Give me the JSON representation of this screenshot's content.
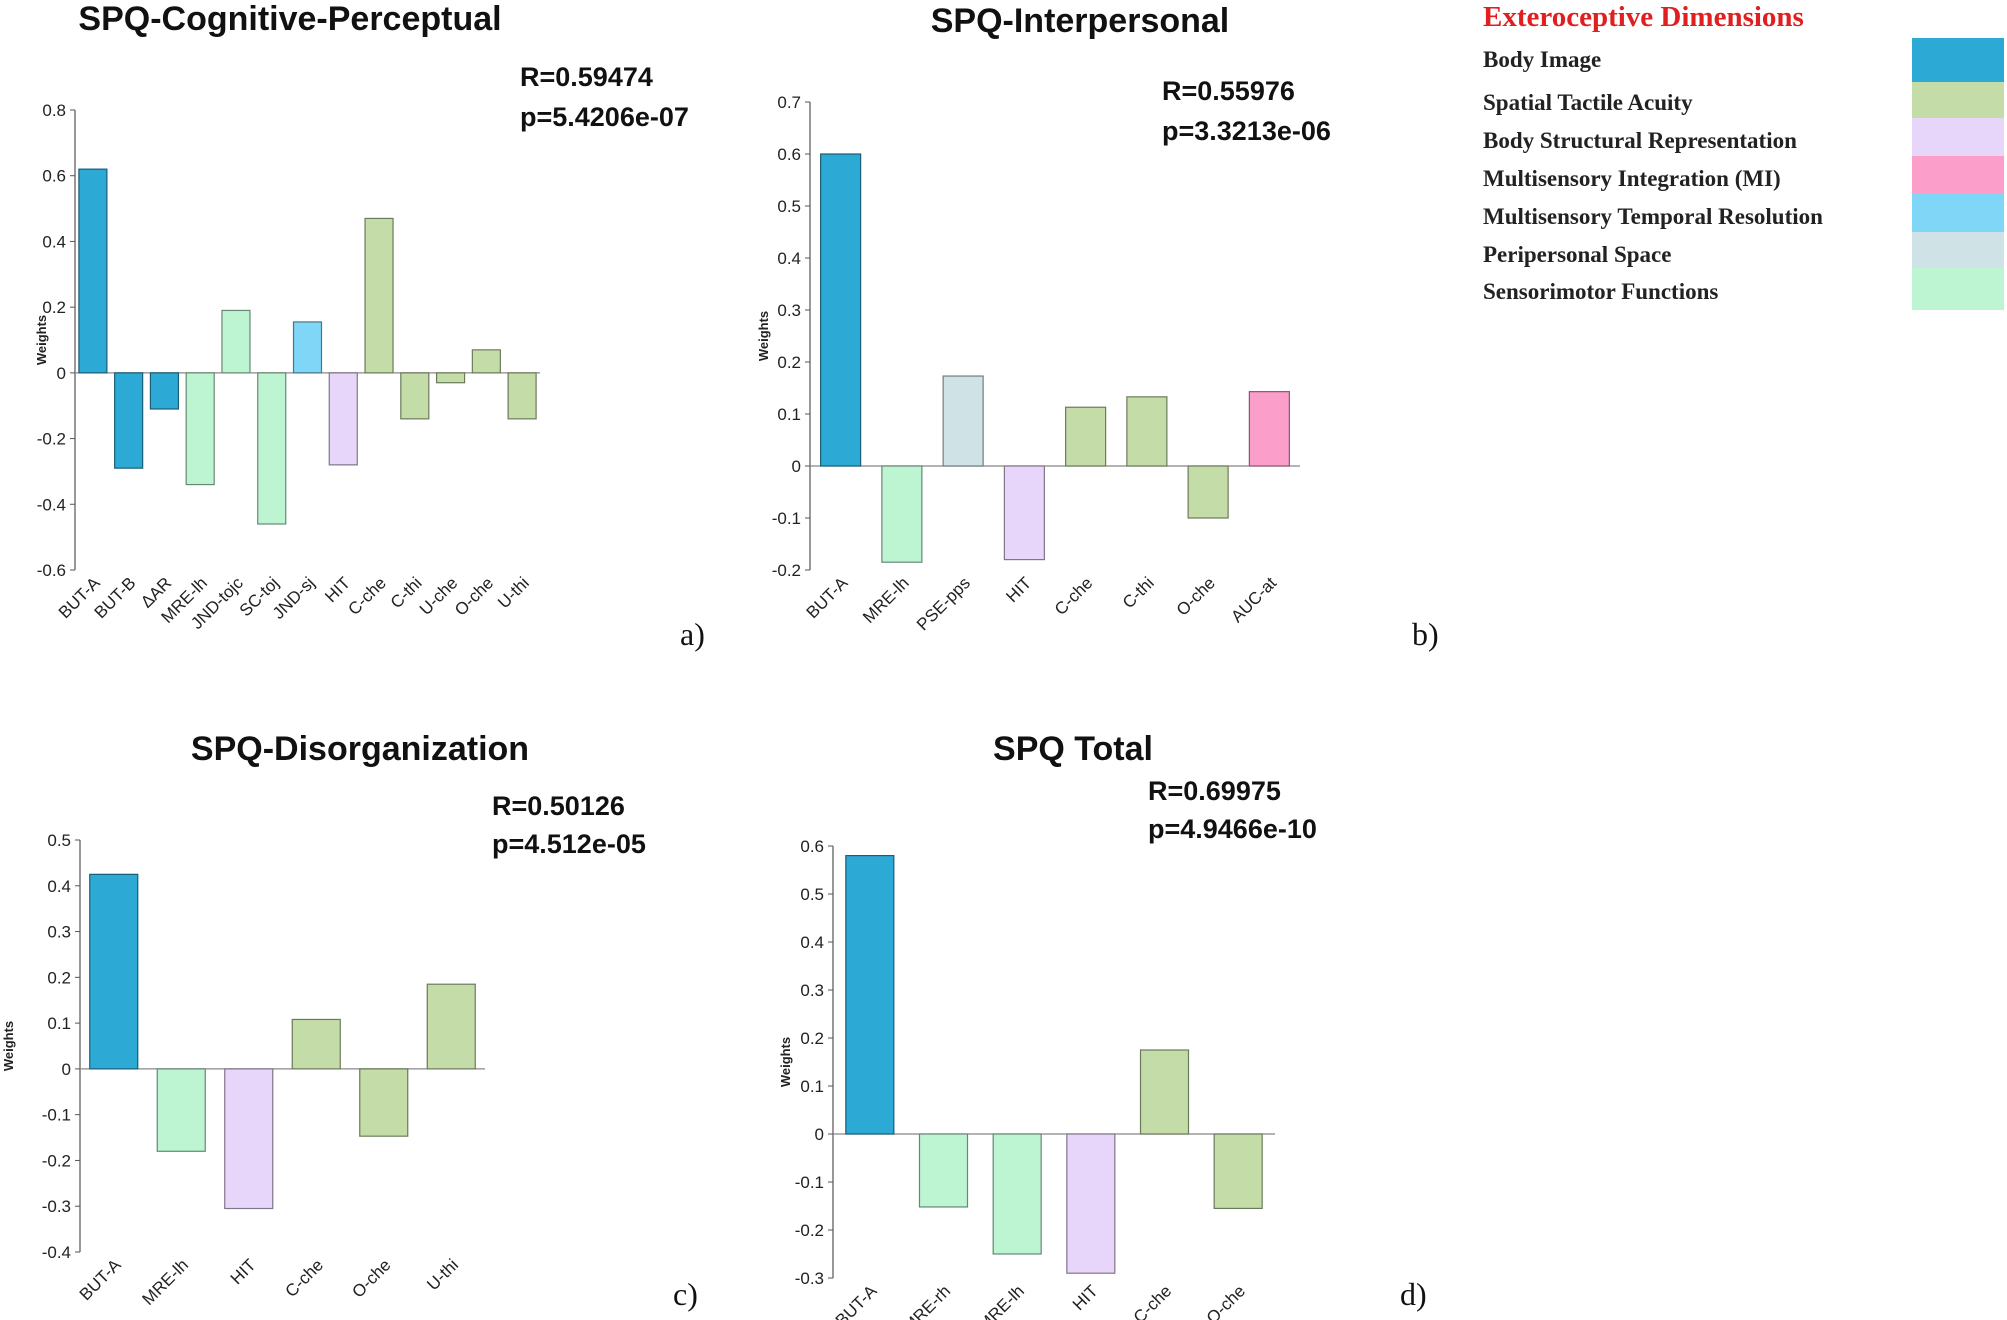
{
  "legend": {
    "title": "Exteroceptive Dimensions",
    "items": [
      {
        "label": "Body Image",
        "color": "#2da9d6"
      },
      {
        "label": "Spatial Tactile Acuity",
        "color": "#c4dda8"
      },
      {
        "label": "Body Structural Representation",
        "color": "#e8d6fa"
      },
      {
        "label": "Multisensory  Integration  (MI)",
        "color": "#fb9ec9"
      },
      {
        "label": "Multisensory  Temporal Resolution",
        "color": "#80d6f7"
      },
      {
        "label": "Peripersonal Space",
        "color": "#cfe2e6"
      },
      {
        "label": "Sensorimotor  Functions",
        "color": "#bdf5d2"
      }
    ]
  },
  "chart_data": [
    {
      "type": "bar",
      "panel": "a)",
      "title": "SPQ-Cognitive-Perceptual",
      "r_text": "R=0.59474",
      "p_text": "p=5.4206e-07",
      "ylabel": "Weights",
      "ylim": [
        -0.6,
        0.8
      ],
      "yticks": [
        -0.6,
        -0.4,
        -0.2,
        0,
        0.2,
        0.4,
        0.6,
        0.8
      ],
      "tick_labels": [
        "-0.6",
        "-0.4",
        "-0.2",
        "0",
        "0.2",
        "0.4",
        "0.6",
        "0.8"
      ],
      "categories": [
        "BUT-A",
        "BUT-B",
        "ΔAR",
        "MRE-lh",
        "JND-tojc",
        "SC-toj",
        "JND-sj",
        "HIT",
        "C-che",
        "C-thi",
        "U-che",
        "O-che",
        "U-thi"
      ],
      "values": [
        0.62,
        -0.29,
        -0.11,
        -0.34,
        0.19,
        -0.46,
        0.155,
        -0.28,
        0.47,
        -0.14,
        -0.03,
        0.07,
        -0.14
      ],
      "colors": [
        "#2da9d6",
        "#2da9d6",
        "#2da9d6",
        "#bdf5d2",
        "#bdf5d2",
        "#bdf5d2",
        "#80d6f7",
        "#e8d6fa",
        "#c4dda8",
        "#c4dda8",
        "#c4dda8",
        "#c4dda8",
        "#c4dda8"
      ]
    },
    {
      "type": "bar",
      "panel": "b)",
      "title": "SPQ-Interpersonal",
      "r_text": "R=0.55976",
      "p_text": "p=3.3213e-06",
      "ylabel": "Weights",
      "ylim": [
        -0.2,
        0.7
      ],
      "yticks": [
        -0.2,
        -0.1,
        0,
        0.1,
        0.2,
        0.3,
        0.4,
        0.5,
        0.6,
        0.7
      ],
      "tick_labels": [
        "-0.2",
        "-0.1",
        "0",
        "0.1",
        "0.2",
        "0.3",
        "0.4",
        "0.5",
        "0.6",
        "0.7"
      ],
      "categories": [
        "BUT-A",
        "MRE-lh",
        "PSE-pps",
        "HIT",
        "C-che",
        "C-thi",
        "O-che",
        "AUC-at"
      ],
      "values": [
        0.6,
        -0.185,
        0.173,
        -0.18,
        0.113,
        0.133,
        -0.1,
        0.143
      ],
      "colors": [
        "#2da9d6",
        "#bdf5d2",
        "#cfe2e6",
        "#e8d6fa",
        "#c4dda8",
        "#c4dda8",
        "#c4dda8",
        "#fb9ec9"
      ]
    },
    {
      "type": "bar",
      "panel": "c)",
      "title": "SPQ-Disorganization",
      "r_text": "R=0.50126",
      "p_text": "p=4.512e-05",
      "ylabel": "Weights",
      "ylim": [
        -0.4,
        0.5
      ],
      "yticks": [
        -0.4,
        -0.3,
        -0.2,
        -0.1,
        0,
        0.1,
        0.2,
        0.3,
        0.4,
        0.5
      ],
      "tick_labels": [
        "-0.4",
        "-0.3",
        "-0.2",
        "-0.1",
        "0",
        "0.1",
        "0.2",
        "0.3",
        "0.4",
        "0.5"
      ],
      "categories": [
        "BUT-A",
        "MRE-lh",
        "HIT",
        "C-che",
        "O-che",
        "U-thi"
      ],
      "values": [
        0.425,
        -0.18,
        -0.305,
        0.108,
        -0.147,
        0.185
      ],
      "colors": [
        "#2da9d6",
        "#bdf5d2",
        "#e8d6fa",
        "#c4dda8",
        "#c4dda8",
        "#c4dda8"
      ]
    },
    {
      "type": "bar",
      "panel": "d)",
      "title": "SPQ Total",
      "r_text": "R=0.69975",
      "p_text": "p=4.9466e-10",
      "ylabel": "Weights",
      "ylim": [
        -0.3,
        0.6
      ],
      "yticks": [
        -0.3,
        -0.2,
        -0.1,
        0,
        0.1,
        0.2,
        0.3,
        0.4,
        0.5,
        0.6
      ],
      "tick_labels": [
        "-0.3",
        "-0.2",
        "-0.1",
        "0",
        "0.1",
        "0.2",
        "0.3",
        "0.4",
        "0.5",
        "0.6"
      ],
      "categories": [
        "BUT-A",
        "MRE-rh",
        "MRE-lh",
        "HIT",
        "C-che",
        "O-che"
      ],
      "values": [
        0.58,
        -0.152,
        -0.25,
        -0.29,
        0.175,
        -0.155
      ],
      "colors": [
        "#2da9d6",
        "#bdf5d2",
        "#bdf5d2",
        "#e8d6fa",
        "#c4dda8",
        "#c4dda8"
      ]
    }
  ]
}
